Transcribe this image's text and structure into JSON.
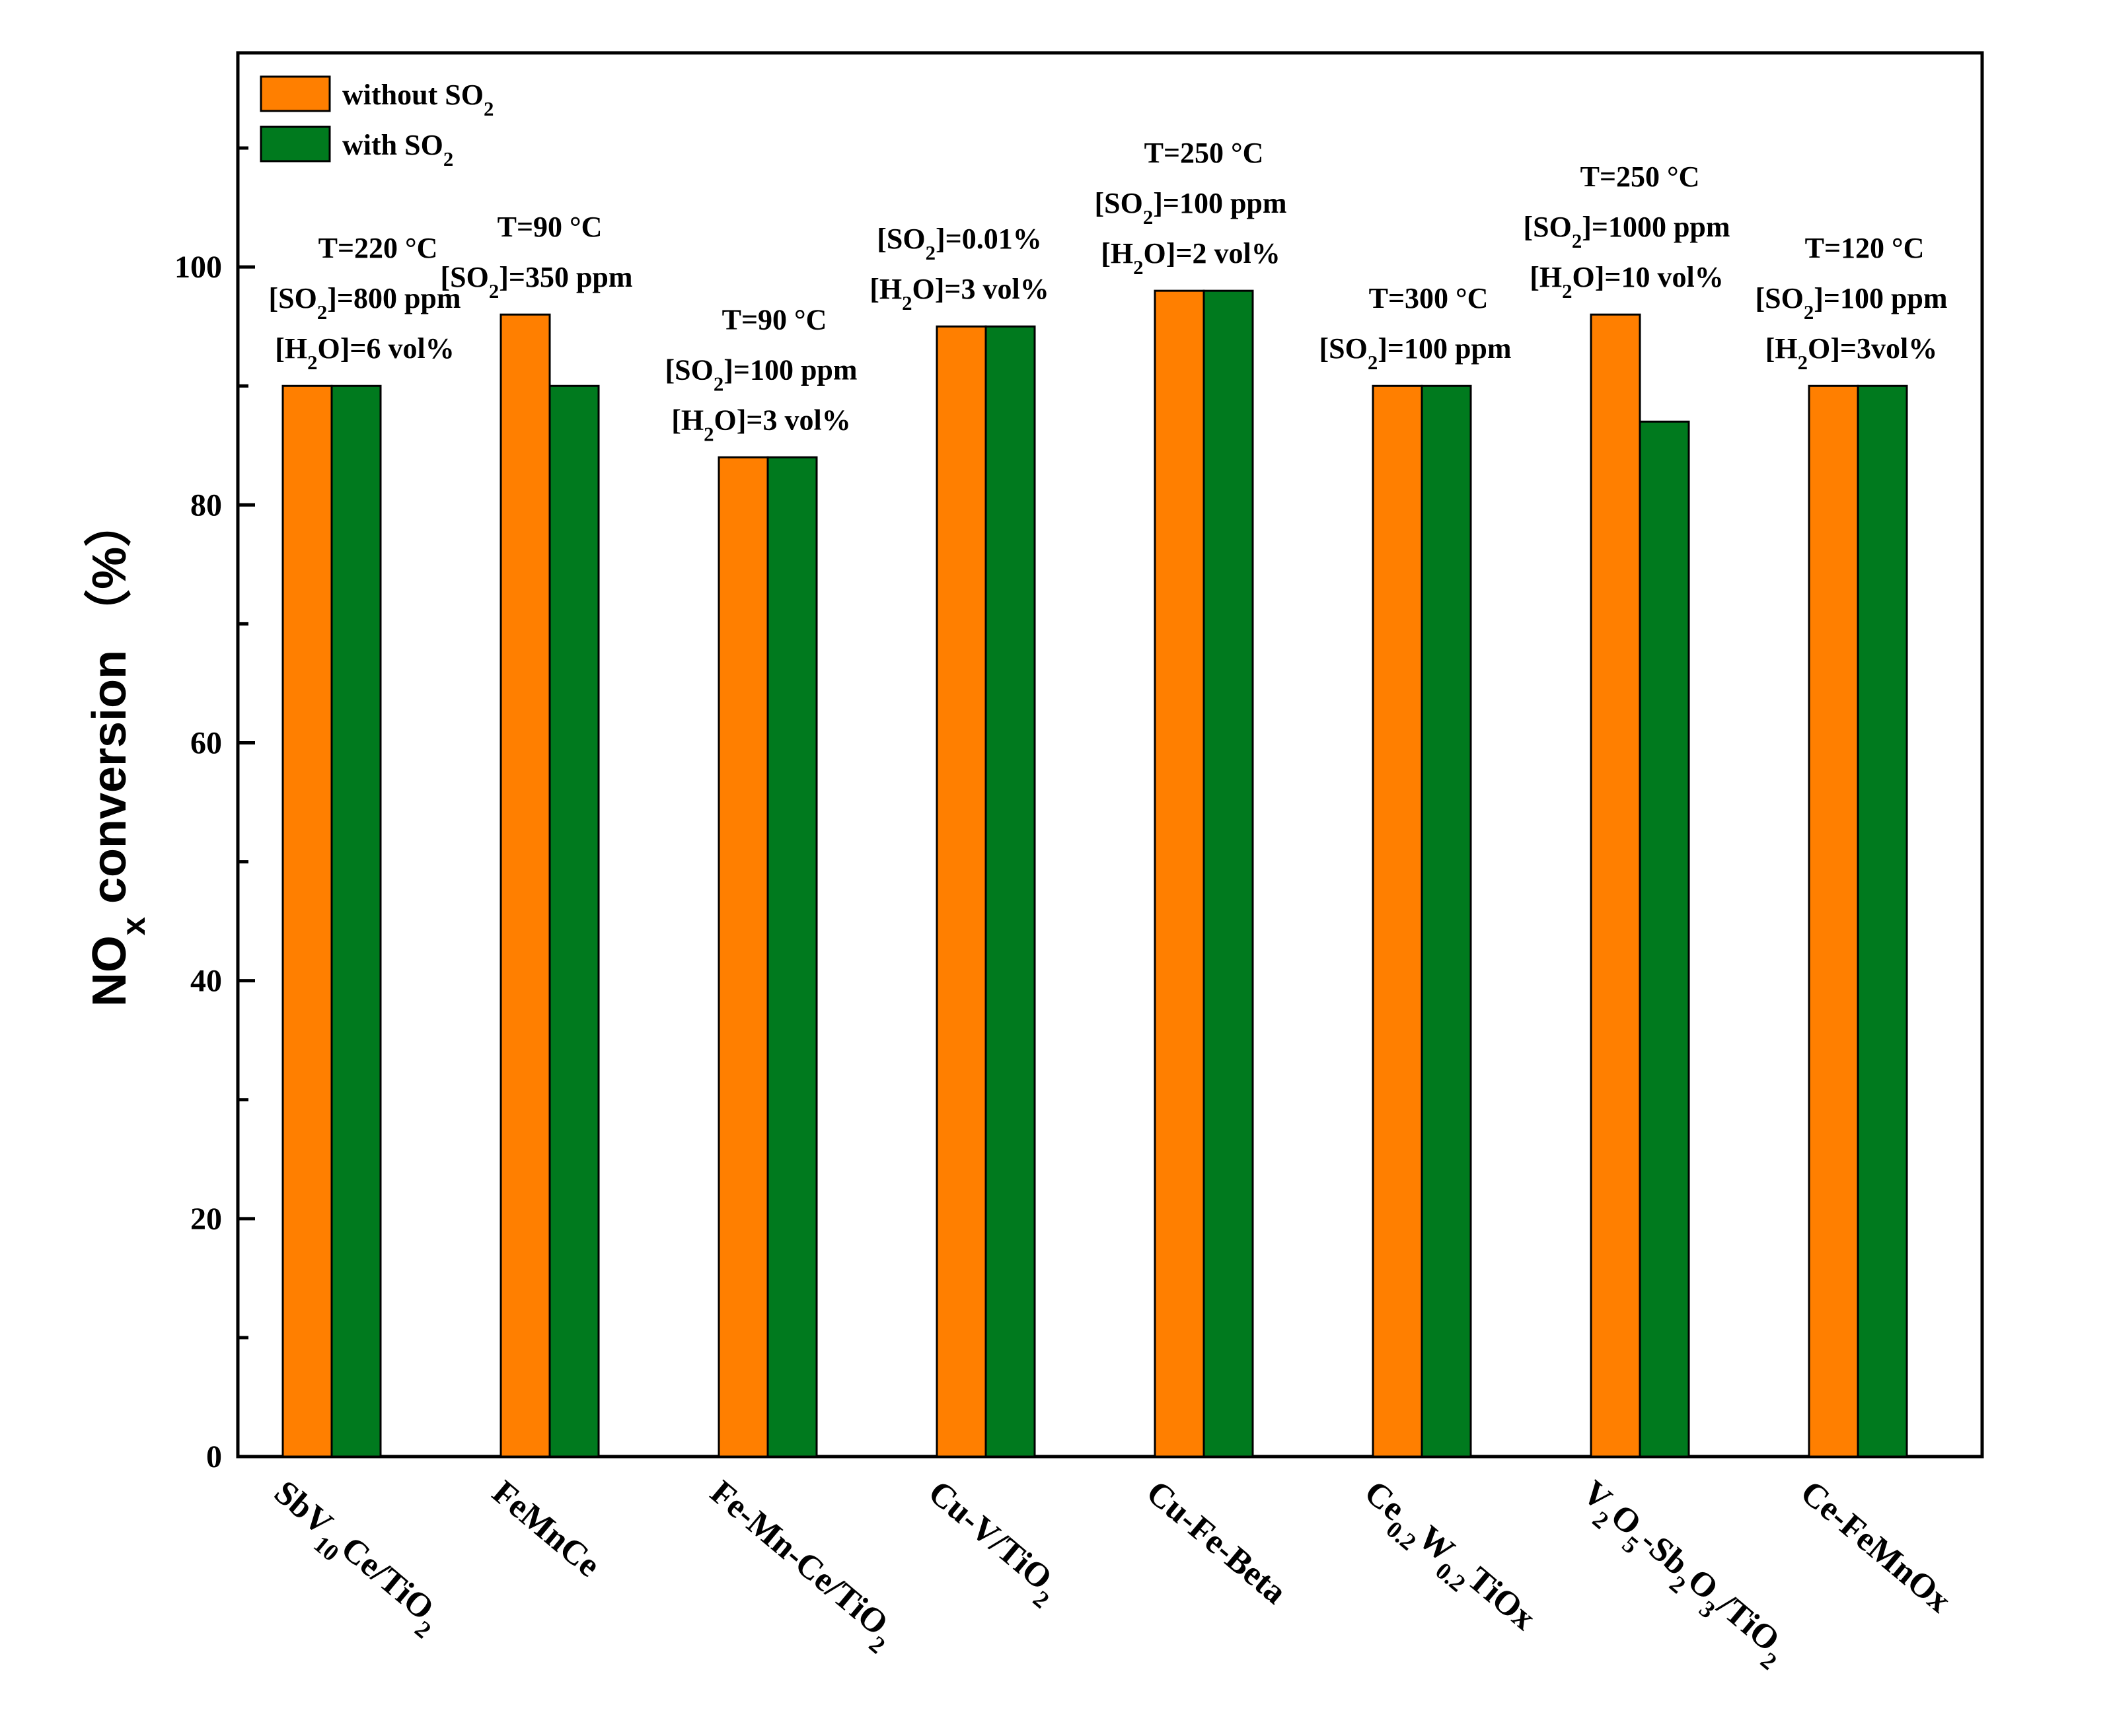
{
  "chart_data": {
    "type": "bar",
    "title": "",
    "xlabel": "",
    "ylabel": "NOx conversion （%）",
    "ylim": [
      0,
      118
    ],
    "yticks": [
      0,
      20,
      40,
      60,
      80,
      100
    ],
    "grid": false,
    "legend_position": "top-left",
    "colors": {
      "without_so2": "#ff7f00",
      "with_so2": "#007a1e"
    },
    "categories": [
      "SbV10Ce/TiO2",
      "FeMnCe",
      "Fe-Mn-Ce/TiO2",
      "Cu-V/TiO2",
      "Cu-Fe-Beta",
      "Ce0.2W0.2TiOx",
      "V2O5-Sb2O3/TiO2",
      "Ce-FeMnOx"
    ],
    "series": [
      {
        "name": "without SO2",
        "values": [
          90,
          96,
          84,
          95,
          98,
          90,
          96,
          90
        ]
      },
      {
        "name": "with SO2",
        "values": [
          90,
          90,
          84,
          95,
          98,
          90,
          87,
          90
        ]
      }
    ],
    "annotations": [
      [
        "T=220 °C",
        "[SO2]=800 ppm",
        "[H2O]=6 vol%"
      ],
      [
        "T=90 °C",
        "[SO2]=350 ppm"
      ],
      [
        "T=90 °C",
        "[SO2]=100 ppm",
        "[H2O]=3 vol%"
      ],
      [
        "[SO2]=0.01%",
        "[H2O]=3 vol%"
      ],
      [
        "T=250 °C",
        "[SO2]=100 ppm",
        "[H2O]=2 vol%"
      ],
      [
        "T=300 °C",
        "[SO2]=100 ppm"
      ],
      [
        "T=250 °C",
        "[SO2]=1000 ppm",
        "[H2O]=10 vol%"
      ],
      [
        "T=120 °C",
        "[SO2]=100 ppm",
        "[H2O]=3vol%"
      ]
    ]
  }
}
